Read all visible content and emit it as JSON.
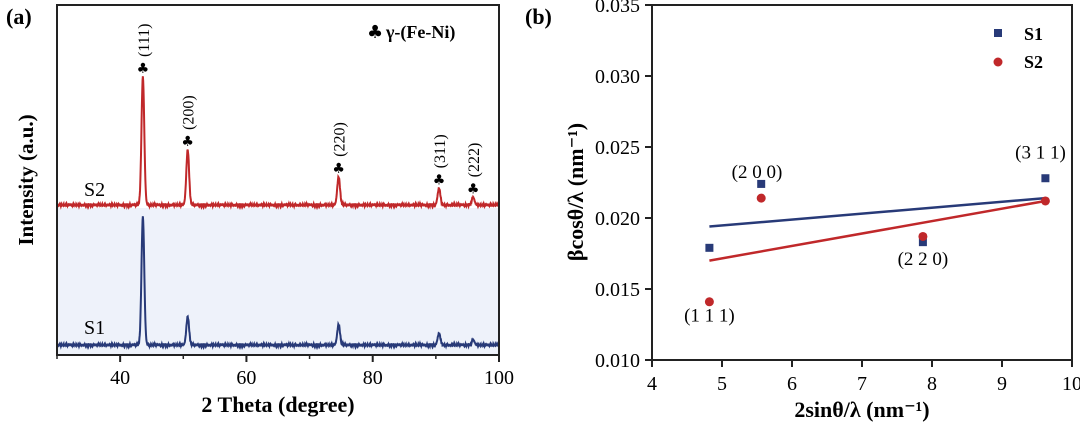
{
  "panel_a": {
    "panel_label": "(a)",
    "legend_text": "γ-(Fe-Ni)",
    "legend_symbol": "♣",
    "peak_marker": "♣",
    "peak_labels": [
      "(111)",
      "(200)",
      "(220)",
      "(311)",
      "(222)"
    ],
    "curve_labels": [
      "S2",
      "S1"
    ]
  },
  "panel_b": {
    "panel_label": "(b)",
    "points": [
      {
        "series": "S1",
        "x": 4.82,
        "y": 0.0179
      },
      {
        "series": "S1",
        "x": 5.56,
        "y": 0.0224
      },
      {
        "series": "S1",
        "x": 7.87,
        "y": 0.0183
      },
      {
        "series": "S1",
        "x": 9.62,
        "y": 0.0228
      },
      {
        "series": "S2",
        "x": 4.82,
        "y": 0.0141
      },
      {
        "series": "S2",
        "x": 5.56,
        "y": 0.0214
      },
      {
        "series": "S2",
        "x": 7.87,
        "y": 0.0187
      },
      {
        "series": "S2",
        "x": 9.62,
        "y": 0.0212
      }
    ],
    "point_labels": [
      {
        "text": "(1 1 1)",
        "x": 4.82,
        "y": 0.0132
      },
      {
        "text": "(2 0 0)",
        "x": 5.5,
        "y": 0.0233
      },
      {
        "text": "(2 2 0)",
        "x": 7.87,
        "y": 0.0172
      },
      {
        "text": "(3 1 1)",
        "x": 9.55,
        "y": 0.0247
      }
    ]
  },
  "chart_data": [
    {
      "type": "line",
      "xlabel": "2 Theta (degree)",
      "ylabel": "Intensity (a.u.)",
      "xlim": [
        30,
        100
      ],
      "xticks": [
        40,
        60,
        80,
        100
      ],
      "y_ticks_shown": false,
      "grid": false,
      "legend": {
        "position": "top-right",
        "entries": [
          "γ-(Fe-Ni)"
        ]
      },
      "series": [
        {
          "name": "S2",
          "color": "#c0282a",
          "peaks": [
            {
              "x": 43.6,
              "height": 1.0
            },
            {
              "x": 50.7,
              "height": 0.43
            },
            {
              "x": 74.6,
              "height": 0.22
            },
            {
              "x": 90.5,
              "height": 0.13
            },
            {
              "x": 95.9,
              "height": 0.06
            }
          ]
        },
        {
          "name": "S1",
          "color": "#283a78",
          "peaks": [
            {
              "x": 43.6,
              "height": 1.0
            },
            {
              "x": 50.7,
              "height": 0.22
            },
            {
              "x": 74.6,
              "height": 0.16
            },
            {
              "x": 90.5,
              "height": 0.09
            },
            {
              "x": 95.9,
              "height": 0.04
            }
          ]
        }
      ],
      "peak_annotations": [
        {
          "label": "(111)",
          "x": 43.6
        },
        {
          "label": "(200)",
          "x": 50.7
        },
        {
          "label": "(220)",
          "x": 74.6
        },
        {
          "label": "(311)",
          "x": 90.5
        },
        {
          "label": "(222)",
          "x": 95.9
        }
      ]
    },
    {
      "type": "scatter",
      "xlabel": "2sinθ/λ (nm⁻¹)",
      "ylabel": "βcosθ/λ (nm⁻¹)",
      "xlim": [
        4,
        10
      ],
      "ylim": [
        0.01,
        0.035
      ],
      "xticks": [
        4,
        5,
        6,
        7,
        8,
        9,
        10
      ],
      "yticks": [
        "0.010",
        "0.015",
        "0.020",
        "0.025",
        "0.030",
        "0.035"
      ],
      "grid": false,
      "legend": {
        "position": "top-right",
        "entries": [
          "S1",
          "S2"
        ]
      },
      "series": [
        {
          "name": "S1",
          "color": "#283a78",
          "marker": "square",
          "x": [
            4.82,
            5.56,
            7.87,
            9.62
          ],
          "y": [
            0.0179,
            0.0224,
            0.0183,
            0.0228
          ],
          "fit": {
            "x": [
              4.82,
              9.62
            ],
            "y": [
              0.0194,
              0.0214
            ]
          }
        },
        {
          "name": "S2",
          "color": "#c0282a",
          "marker": "circle",
          "x": [
            4.82,
            5.56,
            7.87,
            9.62
          ],
          "y": [
            0.0141,
            0.0214,
            0.0187,
            0.0212
          ],
          "fit": {
            "x": [
              4.82,
              9.62
            ],
            "y": [
              0.017,
              0.0212
            ]
          }
        }
      ]
    }
  ]
}
